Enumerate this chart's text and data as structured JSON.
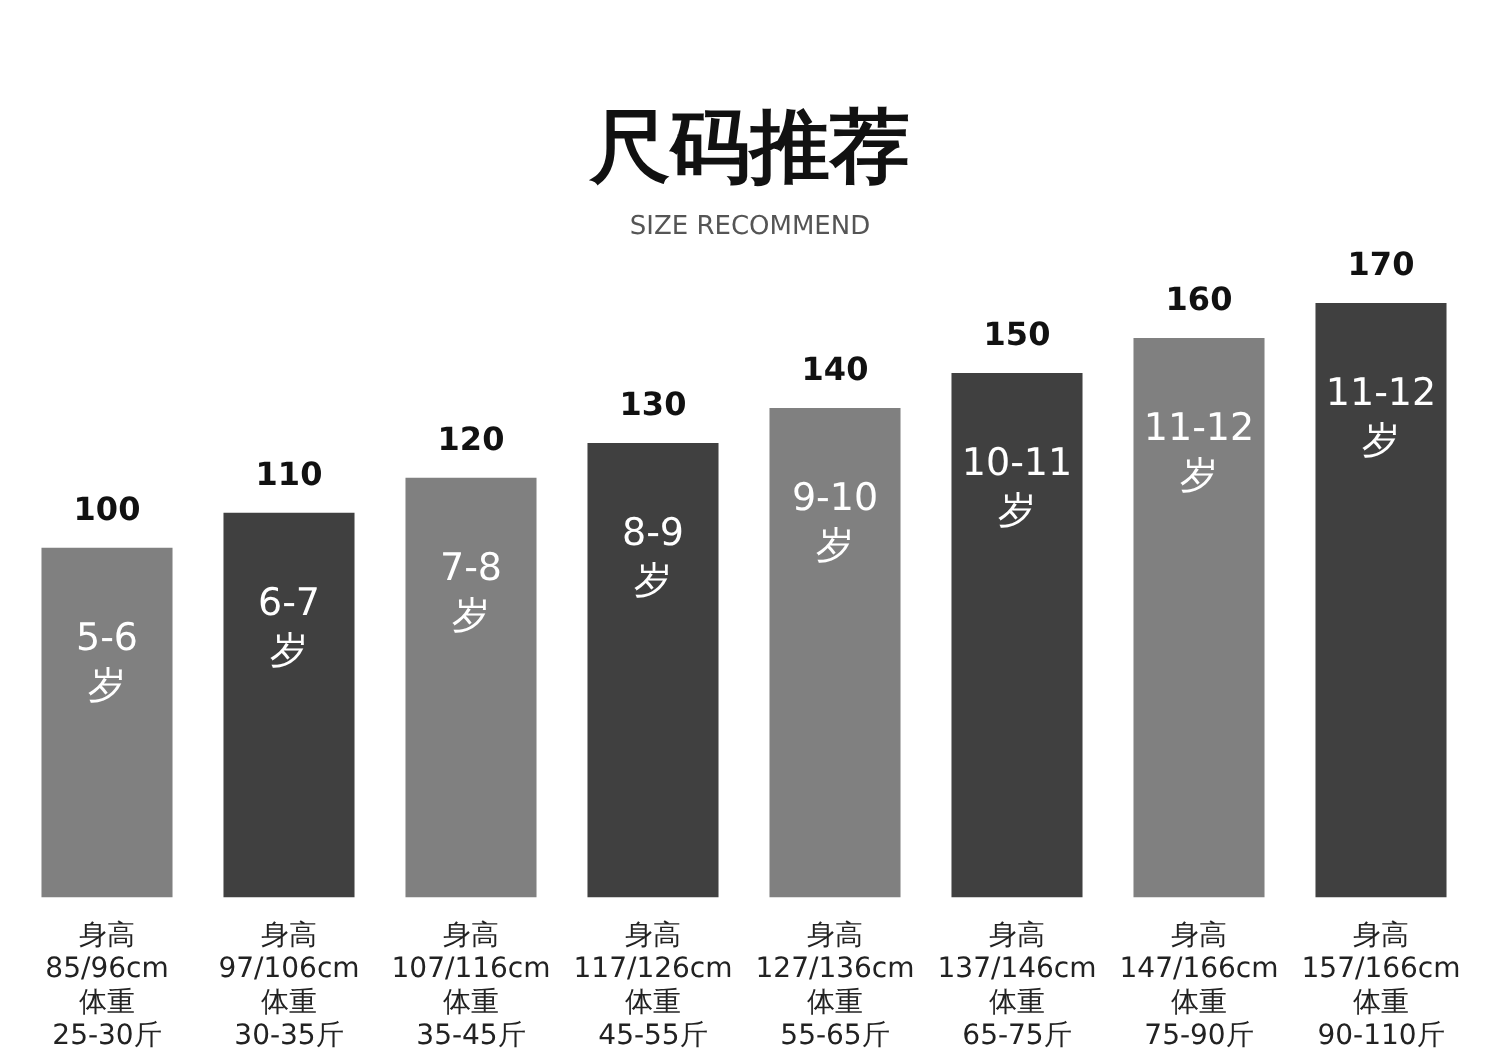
{
  "chart_data": {
    "type": "bar",
    "title": "尺码推荐",
    "subtitle": "SIZE RECOMMEND",
    "categories": [
      "身高\n85/96cm\n体重\n25-30斤",
      "身高\n97/106cm\n体重\n30-35斤",
      "身高\n107/116cm\n体重\n35-45斤",
      "身高\n117/126cm\n体重\n45-55斤",
      "身高\n127/136cm\n体重\n55-65斤",
      "身高\n137/146cm\n体重\n65-75斤",
      "身高\n147/166cm\n体重\n75-90斤",
      "身高\n157/166cm\n体重\n90-110斤"
    ],
    "values": [
      100,
      110,
      120,
      130,
      140,
      150,
      160,
      170
    ],
    "colors": [
      "#808080",
      "#404040",
      "#808080",
      "#404040",
      "#808080",
      "#404040",
      "#808080",
      "#404040"
    ],
    "data_labels": true,
    "grid": false,
    "legend": false,
    "tick_labels": "x",
    "annotations": [
      "5-6\n岁",
      "6-7\n岁",
      "7-8\n岁",
      "8-9\n岁",
      "9-10\n岁",
      "10-11\n岁",
      "11-12\n岁",
      "11-12\n岁"
    ]
  }
}
